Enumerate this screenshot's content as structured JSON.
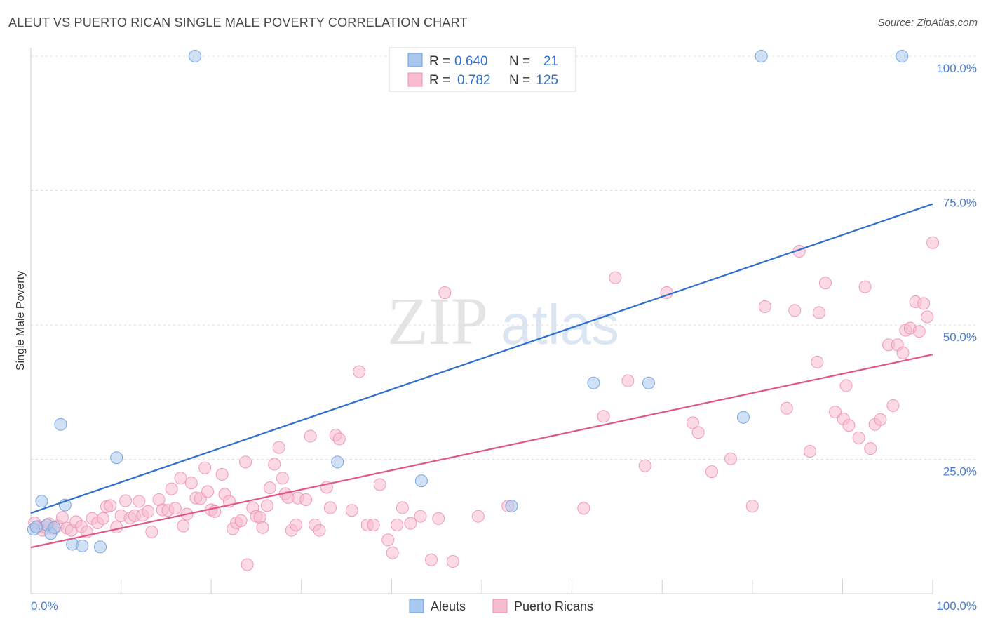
{
  "title": "ALEUT VS PUERTO RICAN SINGLE MALE POVERTY CORRELATION CHART",
  "source": "Source: ZipAtlas.com",
  "watermark": {
    "zip": "ZIP",
    "atlas": "atlas"
  },
  "legend": {
    "rows": [
      {
        "r_label": "R =",
        "r_value": "0.640",
        "n_label": "N =",
        "n_value": "21",
        "color": "#aac8ee"
      },
      {
        "r_label": "R =",
        "r_value": "0.782",
        "n_label": "N =",
        "n_value": "125",
        "color": "#f7bcd0"
      }
    ]
  },
  "bottom_legend": {
    "aleuts": "Aleuts",
    "puerto_ricans": "Puerto Ricans"
  },
  "chart_data": {
    "type": "scatter",
    "title": "ALEUT VS PUERTO RICAN SINGLE MALE POVERTY CORRELATION CHART",
    "ylabel": "Single Male Poverty",
    "xlabel": "",
    "xlim": [
      0,
      100
    ],
    "ylim": [
      0,
      100
    ],
    "x_tick_labels": {
      "left": "0.0%",
      "right": "100.0%"
    },
    "y_ticks": [
      {
        "value": 25,
        "label": "25.0%"
      },
      {
        "value": 50,
        "label": "50.0%"
      },
      {
        "value": 75,
        "label": "75.0%"
      },
      {
        "value": 100,
        "label": "100.0%"
      }
    ],
    "grid": "horizontal dashed",
    "legend_position": "top-center",
    "series": [
      {
        "name": "Aleuts",
        "color": "#6a9fe0",
        "fill": "#aac8ee",
        "trend": {
          "x": [
            0,
            100
          ],
          "y": [
            15.0,
            72.5
          ],
          "color": "#2f6fd0"
        },
        "points": [
          [
            0.3,
            12
          ],
          [
            1.2,
            17.2
          ],
          [
            1.8,
            12.8
          ],
          [
            2.2,
            11.2
          ],
          [
            2.6,
            12.3
          ],
          [
            3.3,
            31.5
          ],
          [
            3.8,
            16.5
          ],
          [
            4.6,
            9.2
          ],
          [
            5.7,
            8.9
          ],
          [
            7.7,
            8.7
          ],
          [
            9.5,
            25.3
          ],
          [
            18.2,
            100
          ],
          [
            34.0,
            24.5
          ],
          [
            43.3,
            21
          ],
          [
            53.3,
            16.3
          ],
          [
            62.4,
            39.2
          ],
          [
            68.5,
            39.2
          ],
          [
            79.0,
            32.8
          ],
          [
            81.0,
            100
          ],
          [
            96.6,
            100
          ],
          [
            0.6,
            12.4
          ]
        ]
      },
      {
        "name": "Puerto Ricans",
        "color": "#ef8fb0",
        "fill": "#f7bcd0",
        "trend": {
          "x": [
            0,
            100
          ],
          "y": [
            8.6,
            44.5
          ],
          "color": "#e0558a"
        },
        "points": [
          [
            0.4,
            13.2
          ],
          [
            0.8,
            12.5
          ],
          [
            1.3,
            11.8
          ],
          [
            1.6,
            12.4
          ],
          [
            2.0,
            13
          ],
          [
            2.5,
            12.0
          ],
          [
            3.0,
            12.6
          ],
          [
            3.5,
            14.2
          ],
          [
            4.0,
            12.2
          ],
          [
            4.5,
            11.8
          ],
          [
            5.0,
            13.4
          ],
          [
            5.6,
            12.5
          ],
          [
            6.2,
            11.5
          ],
          [
            6.8,
            14
          ],
          [
            7.4,
            13.2
          ],
          [
            8.0,
            14.0
          ],
          [
            8.4,
            16.2
          ],
          [
            8.8,
            16.4
          ],
          [
            9.5,
            12.4
          ],
          [
            10.0,
            14.5
          ],
          [
            10.5,
            17.3
          ],
          [
            11.0,
            14.1
          ],
          [
            11.5,
            14.5
          ],
          [
            12.0,
            17.2
          ],
          [
            12.4,
            14.6
          ],
          [
            13.0,
            15.3
          ],
          [
            13.4,
            11.5
          ],
          [
            14.2,
            17.5
          ],
          [
            14.6,
            15.6
          ],
          [
            15.2,
            15.5
          ],
          [
            15.6,
            19.5
          ],
          [
            16.0,
            15.9
          ],
          [
            16.6,
            21.5
          ],
          [
            16.9,
            12.6
          ],
          [
            17.3,
            14.8
          ],
          [
            17.8,
            20.6
          ],
          [
            18.3,
            17.8
          ],
          [
            18.8,
            17.7
          ],
          [
            19.3,
            23.4
          ],
          [
            19.6,
            19.0
          ],
          [
            20.0,
            15.6
          ],
          [
            20.4,
            15.3
          ],
          [
            21.2,
            22.2
          ],
          [
            21.5,
            18.5
          ],
          [
            22.0,
            17.2
          ],
          [
            22.4,
            12.1
          ],
          [
            22.8,
            13.2
          ],
          [
            23.3,
            13.6
          ],
          [
            23.8,
            24.5
          ],
          [
            24.0,
            5.4
          ],
          [
            24.6,
            16.0
          ],
          [
            25.0,
            14.4
          ],
          [
            25.4,
            14.2
          ],
          [
            25.7,
            12.3
          ],
          [
            26.2,
            16.4
          ],
          [
            26.5,
            19.7
          ],
          [
            27.0,
            24.1
          ],
          [
            27.5,
            27.2
          ],
          [
            27.9,
            21.5
          ],
          [
            28.2,
            18.6
          ],
          [
            28.5,
            17.9
          ],
          [
            28.9,
            11.8
          ],
          [
            29.4,
            12.8
          ],
          [
            29.6,
            17.8
          ],
          [
            30.5,
            17.5
          ],
          [
            31.0,
            29.3
          ],
          [
            31.5,
            12.8
          ],
          [
            32.0,
            11.8
          ],
          [
            32.8,
            19.8
          ],
          [
            33.2,
            16.0
          ],
          [
            33.8,
            29.5
          ],
          [
            34.2,
            28.8
          ],
          [
            35.6,
            15.5
          ],
          [
            36.4,
            41.3
          ],
          [
            37.3,
            12.8
          ],
          [
            38.0,
            12.8
          ],
          [
            38.7,
            20.3
          ],
          [
            39.6,
            10.0
          ],
          [
            40.1,
            7.6
          ],
          [
            40.6,
            12.8
          ],
          [
            41.2,
            16.0
          ],
          [
            42.1,
            13.1
          ],
          [
            43.2,
            14.4
          ],
          [
            44.4,
            6.3
          ],
          [
            45.2,
            14.0
          ],
          [
            45.9,
            56.0
          ],
          [
            46.8,
            6.0
          ],
          [
            49.6,
            14.4
          ],
          [
            52.9,
            16.3
          ],
          [
            61.3,
            15.9
          ],
          [
            63.5,
            33.0
          ],
          [
            64.8,
            58.8
          ],
          [
            66.2,
            39.6
          ],
          [
            68.1,
            23.8
          ],
          [
            70.5,
            56.0
          ],
          [
            73.4,
            31.8
          ],
          [
            74.0,
            30.0
          ],
          [
            75.5,
            22.7
          ],
          [
            77.6,
            25.1
          ],
          [
            80.0,
            16.3
          ],
          [
            81.4,
            53.4
          ],
          [
            83.8,
            34.5
          ],
          [
            84.7,
            52.7
          ],
          [
            85.2,
            63.7
          ],
          [
            86.4,
            26.5
          ],
          [
            87.2,
            43.1
          ],
          [
            87.4,
            52.3
          ],
          [
            88.1,
            57.8
          ],
          [
            89.2,
            33.8
          ],
          [
            90.1,
            32.5
          ],
          [
            90.4,
            38.7
          ],
          [
            90.7,
            31.3
          ],
          [
            91.8,
            29.0
          ],
          [
            92.5,
            57.1
          ],
          [
            93.1,
            27.0
          ],
          [
            93.6,
            31.5
          ],
          [
            94.2,
            32.4
          ],
          [
            95.1,
            46.3
          ],
          [
            95.6,
            35.0
          ],
          [
            96.1,
            46.3
          ],
          [
            96.7,
            44.8
          ],
          [
            97.0,
            49.0
          ],
          [
            97.5,
            49.4
          ],
          [
            98.1,
            54.3
          ],
          [
            98.5,
            48.8
          ],
          [
            99.0,
            54.0
          ],
          [
            99.4,
            51.5
          ],
          [
            100.0,
            65.3
          ]
        ]
      }
    ]
  }
}
